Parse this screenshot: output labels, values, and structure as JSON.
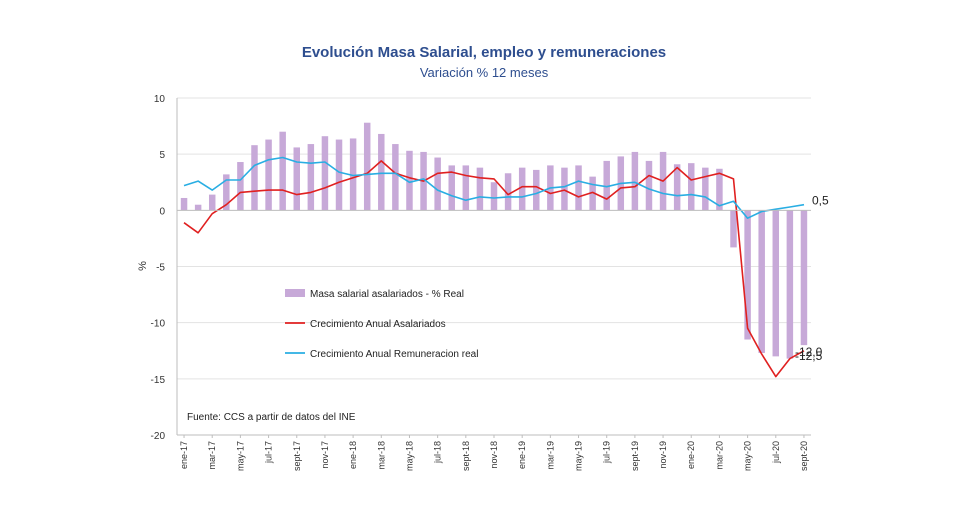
{
  "chart_data": {
    "type": "bar+line",
    "title": "Evolución Masa Salarial, empleo y remuneraciones",
    "subtitle": "Variación % 12 meses",
    "ylabel": "%",
    "ylim": [
      -20,
      10
    ],
    "yticks": [
      10,
      5,
      0,
      -5,
      -10,
      -15,
      -20
    ],
    "grid": true,
    "legend_placement": "center-left",
    "source": "Fuente: CCS a partir de datos del INE",
    "x": [
      "ene-17",
      "feb-17",
      "mar-17",
      "abr-17",
      "may-17",
      "jun-17",
      "jul-17",
      "ago-17",
      "sept-17",
      "oct-17",
      "nov-17",
      "dic-17",
      "ene-18",
      "feb-18",
      "mar-18",
      "abr-18",
      "may-18",
      "jun-18",
      "jul-18",
      "ago-18",
      "sept-18",
      "oct-18",
      "nov-18",
      "dic-18",
      "ene-19",
      "feb-19",
      "mar-19",
      "abr-19",
      "may-19",
      "jun-19",
      "jul-19",
      "ago-19",
      "sept-19",
      "oct-19",
      "nov-19",
      "dic-19",
      "ene-20",
      "feb-20",
      "mar-20",
      "abr-20",
      "may-20",
      "jun-20",
      "jul-20",
      "ago-20",
      "sept-20"
    ],
    "x_tick_labels": [
      "ene-17",
      "mar-17",
      "may-17",
      "jul-17",
      "sept-17",
      "nov-17",
      "ene-18",
      "mar-18",
      "may-18",
      "jul-18",
      "sept-18",
      "nov-18",
      "ene-19",
      "mar-19",
      "may-19",
      "jul-19",
      "sept-19",
      "nov-19",
      "ene-20",
      "mar-20",
      "may-20",
      "jul-20",
      "sept-20"
    ],
    "series": [
      {
        "name": "Masa salarial asalariados - % Real",
        "kind": "bar",
        "color": "#c7a9d8",
        "values": [
          1.1,
          0.5,
          1.4,
          3.2,
          4.3,
          5.8,
          6.3,
          7.0,
          5.6,
          5.9,
          6.6,
          6.3,
          6.4,
          7.8,
          6.8,
          5.9,
          5.3,
          5.2,
          4.7,
          4.0,
          4.0,
          3.8,
          2.5,
          3.3,
          3.8,
          3.6,
          4.0,
          3.8,
          4.0,
          3.0,
          4.4,
          4.8,
          5.2,
          4.4,
          5.2,
          4.1,
          4.2,
          3.8,
          3.7,
          -3.3,
          -11.5,
          -12.7,
          -13.0,
          -13.2,
          -12.0
        ]
      },
      {
        "name": "Crecimiento Anual Asalariados",
        "kind": "line",
        "color": "#e02020",
        "values": [
          -1.1,
          -2.0,
          -0.3,
          0.5,
          1.6,
          1.7,
          1.8,
          1.8,
          1.4,
          1.6,
          2.0,
          2.5,
          2.9,
          3.3,
          4.4,
          3.3,
          2.9,
          2.6,
          3.3,
          3.4,
          3.1,
          2.9,
          2.8,
          1.4,
          2.1,
          2.1,
          1.5,
          1.8,
          1.2,
          1.6,
          1.0,
          2.0,
          2.1,
          3.1,
          2.6,
          3.8,
          2.7,
          3.0,
          3.3,
          2.8,
          -10.5,
          -12.8,
          -14.8,
          -13.2,
          -12.5
        ]
      },
      {
        "name": "Crecimiento Anual Remuneracion real",
        "kind": "line",
        "color": "#29aee3",
        "values": [
          2.2,
          2.6,
          1.8,
          2.7,
          2.7,
          4.0,
          4.5,
          4.7,
          4.3,
          4.2,
          4.3,
          3.4,
          3.1,
          3.2,
          3.3,
          3.3,
          2.5,
          2.8,
          1.8,
          1.3,
          0.9,
          1.2,
          1.1,
          1.2,
          1.2,
          1.5,
          2.0,
          2.1,
          2.6,
          2.3,
          2.1,
          2.4,
          2.5,
          1.9,
          1.5,
          1.3,
          1.4,
          1.2,
          0.4,
          0.8,
          -0.7,
          -0.1,
          0.1,
          0.3,
          0.5
        ]
      }
    ],
    "annotations": [
      {
        "text": "0,5",
        "series": "Crecimiento Anual Remuneracion real",
        "value": 0.5
      },
      {
        "text": "-12,0",
        "series": "Masa salarial asalariados - % Real",
        "value": -12.0
      },
      {
        "text": "-12,5",
        "series": "Crecimiento Anual Asalariados",
        "value": -12.5
      }
    ]
  }
}
